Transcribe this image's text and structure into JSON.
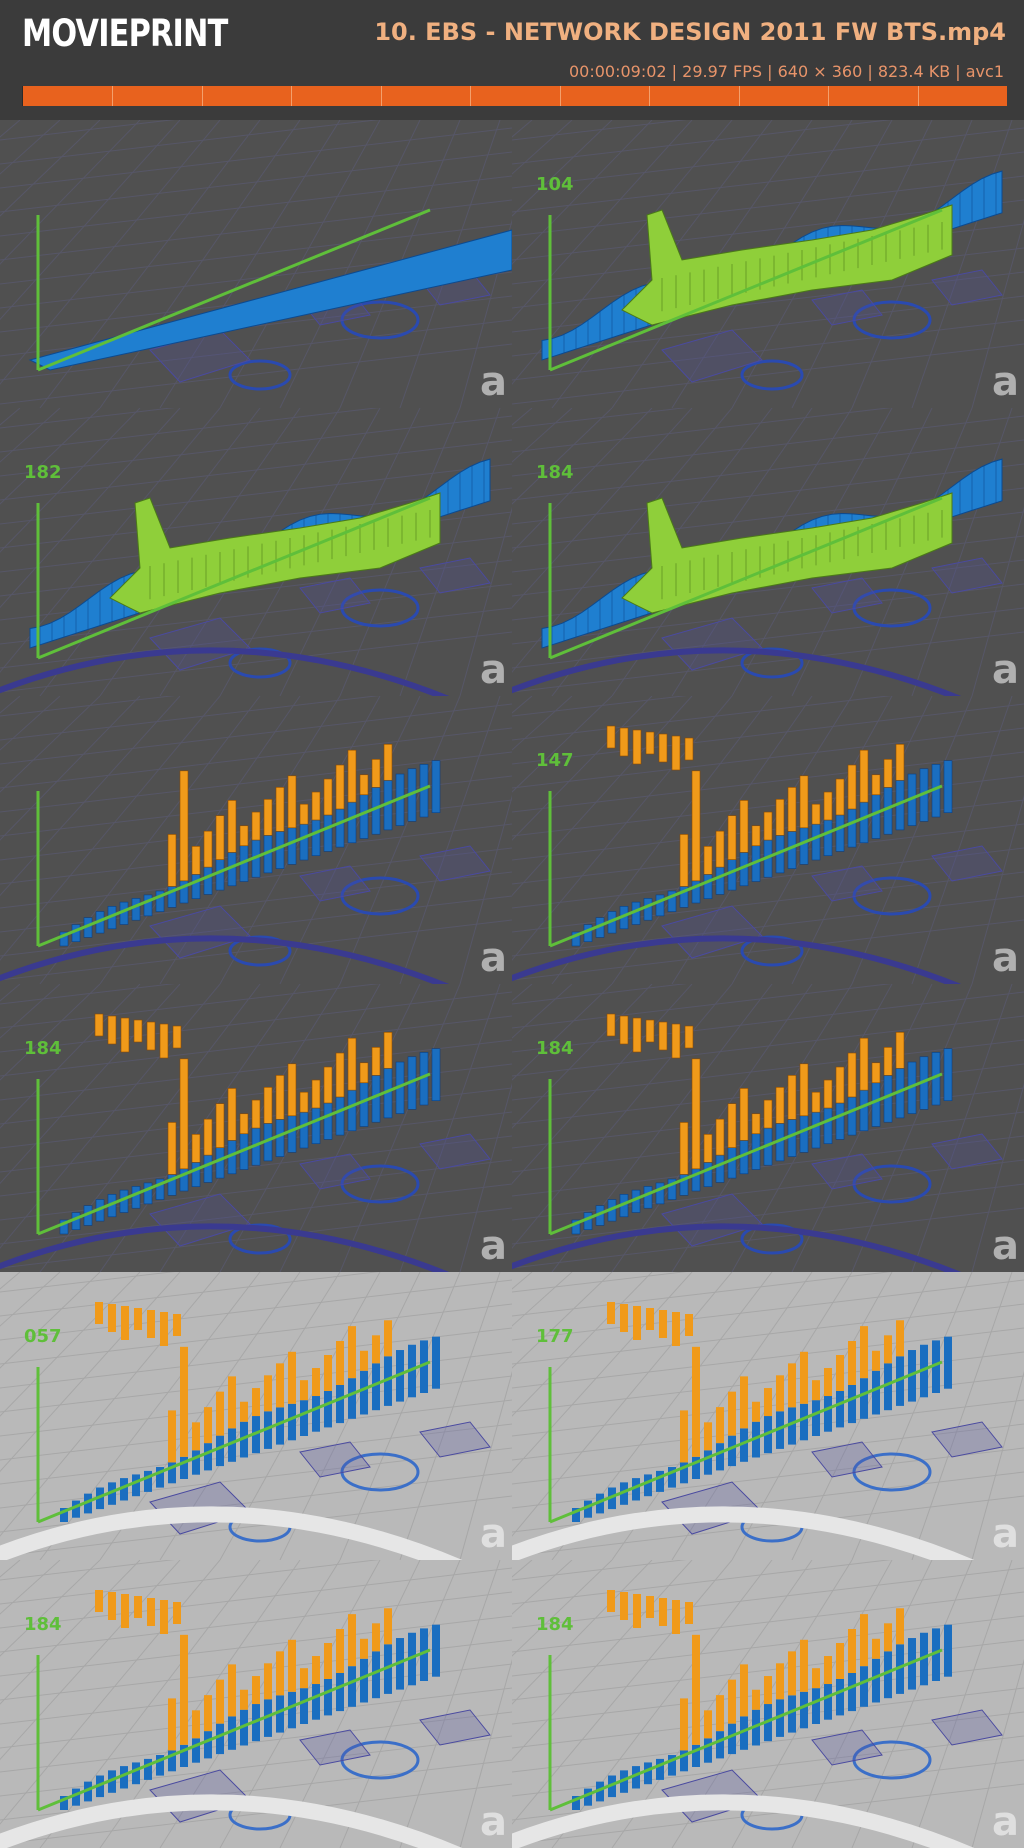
{
  "app": {
    "logo": "MOVIEPRINT",
    "file_title": "10. EBS - NETWORK DESIGN 2011 FW BTS.mp4",
    "meta_line": "00:00:09:02 | 29.97 FPS | 640 × 360 | 823.4 KB | avc1"
  },
  "colors": {
    "background": "#3b3b3b",
    "timeline": "#e8621e",
    "title_text": "#f0b080",
    "green_mesh": "#8fcf3a",
    "blue_mesh": "#1f7fd0",
    "orange_bar": "#f09a1a",
    "blue_bar": "#1a6ec0",
    "axis_green": "#5fbf3a"
  },
  "timeline": {
    "segments": 11
  },
  "thumbnails": [
    {
      "id": 1,
      "scene": "wireframe-wall",
      "label": "",
      "watermark": "a"
    },
    {
      "id": 2,
      "scene": "wireframe-wave",
      "label": "104",
      "watermark": "a"
    },
    {
      "id": 3,
      "scene": "wireframe-wave",
      "label": "182",
      "watermark": "a"
    },
    {
      "id": 4,
      "scene": "wireframe-wave",
      "label": "184",
      "watermark": "a"
    },
    {
      "id": 5,
      "scene": "wireframe-bars",
      "label": "",
      "watermark": "a"
    },
    {
      "id": 6,
      "scene": "wireframe-bars",
      "label": "147",
      "watermark": "a"
    },
    {
      "id": 7,
      "scene": "wireframe-bars",
      "label": "184",
      "watermark": "a"
    },
    {
      "id": 8,
      "scene": "wireframe-bars",
      "label": "184",
      "watermark": "a"
    },
    {
      "id": 9,
      "scene": "render-bars",
      "label": "057",
      "watermark": "a"
    },
    {
      "id": 10,
      "scene": "render-bars",
      "label": "177",
      "watermark": "a"
    },
    {
      "id": 11,
      "scene": "render-bars",
      "label": "184",
      "watermark": "a"
    },
    {
      "id": 12,
      "scene": "render-bars",
      "label": "184",
      "watermark": "a"
    }
  ]
}
